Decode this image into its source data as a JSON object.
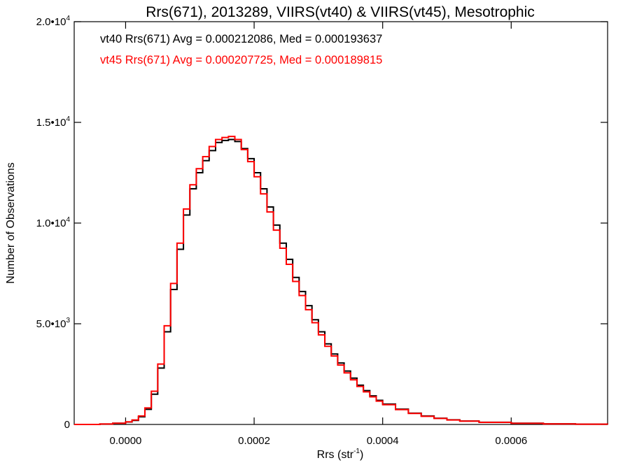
{
  "chart_data": {
    "type": "line",
    "title": "Rrs(671), 2013289, VIIRS(vt40) & VIIRS(vt45), Mesotrophic",
    "xlabel": "Rrs (str",
    "xlabel_sup": "-1",
    "xlabel_close": ")",
    "ylabel": "Number of Observations",
    "xlim": [
      -8e-05,
      0.00075
    ],
    "ylim": [
      0,
      20000
    ],
    "x_ticks": [
      {
        "value": 0.0,
        "label": "0.0000"
      },
      {
        "value": 0.0002,
        "label": "0.0002"
      },
      {
        "value": 0.0004,
        "label": "0.0004"
      },
      {
        "value": 0.0006,
        "label": "0.0006"
      }
    ],
    "y_ticks": [
      {
        "value": 0,
        "mant": "0",
        "exp": ""
      },
      {
        "value": 5000,
        "mant": "5.0•10",
        "exp": "3"
      },
      {
        "value": 10000,
        "mant": "1.0•10",
        "exp": "4"
      },
      {
        "value": 15000,
        "mant": "1.5•10",
        "exp": "4"
      },
      {
        "value": 20000,
        "mant": "2.0•10",
        "exp": "4"
      }
    ],
    "grid": false,
    "annotations": [
      {
        "text": "vt40 Rrs(671) Avg = 0.000212086, Med = 0.000193637",
        "color": "#000000"
      },
      {
        "text": "vt45 Rrs(671) Avg = 0.000207725, Med = 0.000189815",
        "color": "#ff0000"
      }
    ],
    "series": [
      {
        "color": "#000000",
        "x": [
          -8e-05,
          -4e-05,
          -2e-05,
          0.0,
          1e-05,
          2e-05,
          3e-05,
          4e-05,
          5e-05,
          6e-05,
          7e-05,
          8e-05,
          9e-05,
          0.0001,
          0.00011,
          0.00012,
          0.00013,
          0.00014,
          0.00015,
          0.00016,
          0.00017,
          0.00018,
          0.00019,
          0.0002,
          0.00021,
          0.00022,
          0.00023,
          0.00024,
          0.00025,
          0.00026,
          0.00027,
          0.00028,
          0.00029,
          0.0003,
          0.00031,
          0.00032,
          0.00033,
          0.00034,
          0.00035,
          0.00036,
          0.00037,
          0.00038,
          0.00039,
          0.0004,
          0.00042,
          0.00044,
          0.00046,
          0.00048,
          0.0005,
          0.00052,
          0.00055,
          0.0006,
          0.00065,
          0.0007,
          0.00075
        ],
        "y": [
          0,
          20,
          60,
          120,
          200,
          380,
          750,
          1500,
          2800,
          4600,
          6700,
          8700,
          10400,
          11700,
          12500,
          13100,
          13600,
          14000,
          14100,
          14150,
          14050,
          13700,
          13200,
          12500,
          11700,
          10800,
          9900,
          9000,
          8200,
          7300,
          6600,
          5900,
          5200,
          4600,
          4000,
          3500,
          3050,
          2650,
          2300,
          1950,
          1680,
          1420,
          1200,
          1010,
          760,
          560,
          420,
          310,
          230,
          170,
          110,
          60,
          30,
          12,
          5
        ]
      },
      {
        "color": "#ff0000",
        "x": [
          -8e-05,
          -4e-05,
          -2e-05,
          0.0,
          1e-05,
          2e-05,
          3e-05,
          4e-05,
          5e-05,
          6e-05,
          7e-05,
          8e-05,
          9e-05,
          0.0001,
          0.00011,
          0.00012,
          0.00013,
          0.00014,
          0.00015,
          0.00016,
          0.00017,
          0.00018,
          0.00019,
          0.0002,
          0.00021,
          0.00022,
          0.00023,
          0.00024,
          0.00025,
          0.00026,
          0.00027,
          0.00028,
          0.00029,
          0.0003,
          0.00031,
          0.00032,
          0.00033,
          0.00034,
          0.00035,
          0.00036,
          0.00037,
          0.00038,
          0.00039,
          0.0004,
          0.00042,
          0.00044,
          0.00046,
          0.00048,
          0.0005,
          0.00052,
          0.00055,
          0.0006,
          0.00065,
          0.0007,
          0.00075
        ],
        "y": [
          0,
          20,
          60,
          130,
          220,
          420,
          820,
          1650,
          3000,
          4900,
          7000,
          9000,
          10700,
          11900,
          12700,
          13300,
          13800,
          14150,
          14250,
          14300,
          14150,
          13650,
          13050,
          12300,
          11450,
          10550,
          9650,
          8750,
          7950,
          7100,
          6400,
          5700,
          5050,
          4450,
          3880,
          3400,
          2950,
          2560,
          2220,
          1890,
          1620,
          1370,
          1160,
          980,
          740,
          545,
          405,
          300,
          220,
          165,
          105,
          58,
          28,
          11,
          4
        ]
      }
    ]
  }
}
